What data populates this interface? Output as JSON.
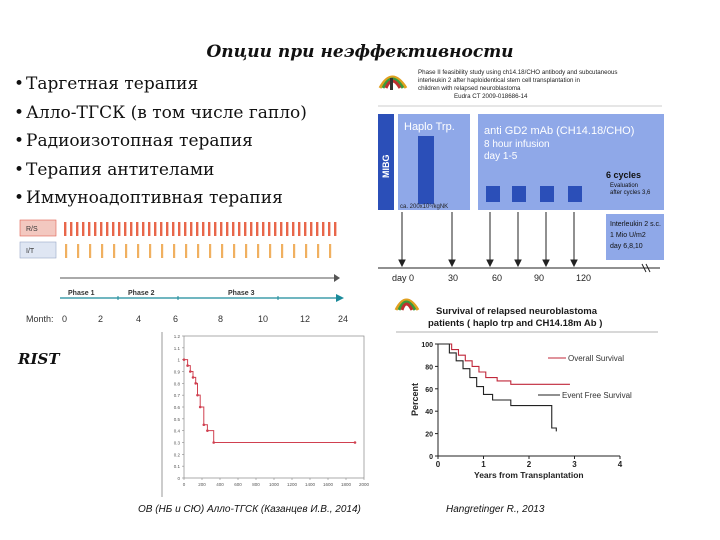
{
  "slide": {
    "title": "Опции при неэффективности",
    "bullets": [
      "Таргетная терапия",
      "Алло-ТГСК (в том числе гапло)",
      "Радиоизотопная терапия",
      "Терапия антителами",
      "Иммуноадоптивная терапия"
    ],
    "rist_label": "RIST",
    "citation_left": "OB (НБ и СЮ) Алло-ТГСК (Казанцев И.В., 2014)",
    "citation_right": "Hangretinger R., 2013"
  },
  "schema_top_right": {
    "study_title_lines": [
      "Phase II feasibility study using ch14.18/CHO antibody and subcutaneous",
      "interleukin 2 after haploidentical stem cell transplantation in",
      "children with relapsed neuroblastoma",
      "Eudra CT 2009-018686-14"
    ],
    "mibg_label": "MIBG",
    "haplo_label": "Haplo Trp.",
    "haplo_dose": "ca. 200x10⁶/kgNK",
    "antibody_lines": [
      "anti GD2 mAb (CH14.18/CHO)",
      "8 hour infusion",
      "day 1-5"
    ],
    "cycles_label": "6 cycles",
    "evaluation_lines": [
      "Evaluation",
      "after cycles 3,6"
    ],
    "interleukin_lines": [
      "Interleukin 2 s.c.",
      "1 Mio U/m2",
      "day 6,8,10"
    ],
    "day_axis": [
      "day 0",
      "30",
      "60",
      "90",
      "120"
    ]
  },
  "timeline_left": {
    "row_labels": [
      "R/S",
      "I/T"
    ],
    "phases": [
      "Phase 1",
      "Phase 2",
      "Phase 3"
    ],
    "month_label": "Month:",
    "months": [
      "0",
      "2",
      "4",
      "6",
      "8",
      "10",
      "12",
      "24"
    ]
  },
  "survival_right": {
    "title_lines": [
      "Survival of relapsed neuroblastoma",
      "patients ( haplo trp and CH14.18m Ab )"
    ],
    "ylabel": "Percent",
    "xlabel": "Years from Transplantation",
    "legend": [
      "Overall Survival",
      "Event Free Survival"
    ],
    "colors": {
      "os": "#c0273a",
      "efs": "#222222"
    }
  },
  "chart_data": [
    {
      "type": "line",
      "title": "",
      "xlabel": "Years from Transplantation",
      "ylabel": "Percent",
      "xlim": [
        0,
        4
      ],
      "ylim": [
        0,
        100
      ],
      "xticks": [
        0,
        1,
        2,
        3,
        4
      ],
      "yticks": [
        0,
        20,
        40,
        60,
        80,
        100
      ],
      "series": [
        {
          "name": "Overall Survival",
          "x": [
            0,
            0.3,
            0.45,
            0.6,
            0.75,
            0.9,
            1.05,
            1.3,
            1.6,
            2.9
          ],
          "y": [
            100,
            95,
            90,
            85,
            80,
            75,
            70,
            67,
            64,
            64
          ]
        },
        {
          "name": "Event Free Survival",
          "x": [
            0,
            0.25,
            0.4,
            0.55,
            0.7,
            0.85,
            1.0,
            1.2,
            1.6,
            2.2,
            2.5,
            2.6
          ],
          "y": [
            100,
            92,
            85,
            78,
            70,
            62,
            55,
            50,
            45,
            45,
            25,
            22
          ]
        }
      ]
    },
    {
      "type": "line",
      "title": "",
      "xlabel": "",
      "ylabel": "",
      "xlim": [
        0,
        2000
      ],
      "ylim": [
        0,
        1.2
      ],
      "yticks": [
        0,
        0.1,
        0.2,
        0.3,
        0.4,
        0.5,
        0.6,
        0.7,
        0.8,
        0.9,
        1.0,
        1.1,
        1.2
      ],
      "xticks": [
        0,
        200,
        400,
        600,
        800,
        1000,
        1200,
        1400,
        1600,
        1800,
        2000
      ],
      "series": [
        {
          "name": "",
          "x": [
            0,
            40,
            70,
            100,
            130,
            150,
            180,
            220,
            260,
            330,
            1900
          ],
          "y": [
            1.0,
            0.95,
            0.9,
            0.85,
            0.8,
            0.7,
            0.6,
            0.45,
            0.4,
            0.3,
            0.3
          ]
        }
      ]
    }
  ]
}
